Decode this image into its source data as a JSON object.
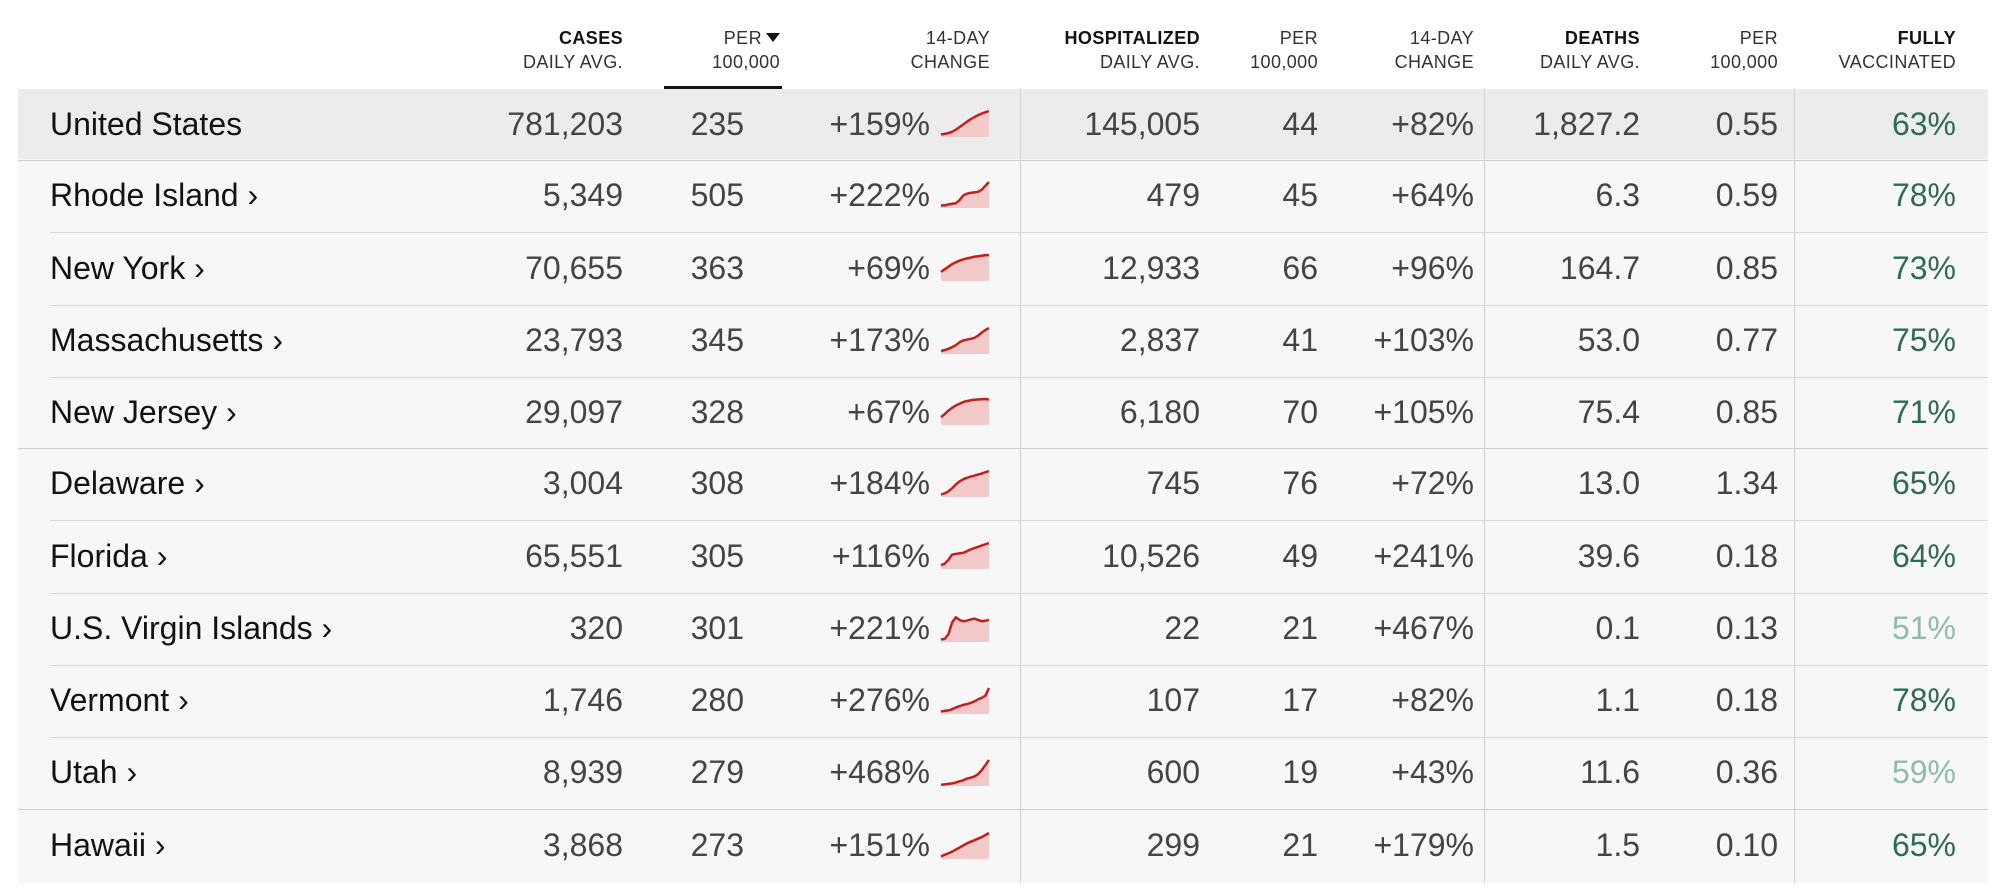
{
  "header": {
    "cases": {
      "line1": "CASES",
      "line2": "DAILY AVG."
    },
    "cases_per": {
      "line1": "PER",
      "line2": "100,000"
    },
    "cases_change": {
      "line1": "14-DAY",
      "line2": "CHANGE"
    },
    "hosp": {
      "line1": "HOSPITALIZED",
      "line2": "DAILY AVG."
    },
    "hosp_per": {
      "line1": "PER",
      "line2": "100,000"
    },
    "hosp_change": {
      "line1": "14-DAY",
      "line2": "CHANGE"
    },
    "deaths": {
      "line1": "DEATHS",
      "line2": "DAILY AVG."
    },
    "deaths_per": {
      "line1": "PER",
      "line2": "100,000"
    },
    "vax": {
      "line1": "FULLY",
      "line2": "VACCINATED"
    }
  },
  "colors": {
    "spark_line": "#c0211e",
    "spark_fill": "#f2c9c8",
    "vax_high": "#2e6a55",
    "vax_low": "#8fbca9"
  },
  "rows": [
    {
      "name": "United States",
      "cases": "781,203",
      "cases_per": "235",
      "cases_change": "+159%",
      "hosp": "145,005",
      "hosp_per": "44",
      "hosp_change": "+82%",
      "deaths": "1,827.2",
      "deaths_per": "0.55",
      "vax": "63%",
      "vax_pct": 63,
      "spark": [
        0.1,
        0.12,
        0.15,
        0.2,
        0.28,
        0.38,
        0.48,
        0.58,
        0.68,
        0.76,
        0.84,
        0.9,
        0.95,
        1.0
      ]
    },
    {
      "name": "Rhode Island ›",
      "cases": "5,349",
      "cases_per": "505",
      "cases_change": "+222%",
      "hosp": "479",
      "hosp_per": "45",
      "hosp_change": "+64%",
      "deaths": "6.3",
      "deaths_per": "0.59",
      "vax": "78%",
      "vax_pct": 78,
      "spark": [
        0.1,
        0.1,
        0.14,
        0.16,
        0.18,
        0.3,
        0.48,
        0.55,
        0.58,
        0.6,
        0.62,
        0.7,
        0.85,
        1.0
      ]
    },
    {
      "name": "New York ›",
      "cases": "70,655",
      "cases_per": "363",
      "cases_change": "+69%",
      "hosp": "12,933",
      "hosp_per": "66",
      "hosp_change": "+96%",
      "deaths": "164.7",
      "deaths_per": "0.85",
      "vax": "73%",
      "vax_pct": 73,
      "spark": [
        0.35,
        0.45,
        0.55,
        0.65,
        0.72,
        0.78,
        0.83,
        0.87,
        0.9,
        0.93,
        0.95,
        0.97,
        0.99,
        1.0
      ]
    },
    {
      "name": "Massachusetts ›",
      "cases": "23,793",
      "cases_per": "345",
      "cases_change": "+173%",
      "hosp": "2,837",
      "hosp_per": "41",
      "hosp_change": "+103%",
      "deaths": "53.0",
      "deaths_per": "0.77",
      "vax": "75%",
      "vax_pct": 75,
      "spark": [
        0.12,
        0.15,
        0.2,
        0.26,
        0.34,
        0.45,
        0.52,
        0.55,
        0.58,
        0.62,
        0.7,
        0.82,
        0.92,
        1.0
      ]
    },
    {
      "name": "New Jersey ›",
      "cases": "29,097",
      "cases_per": "328",
      "cases_change": "+67%",
      "hosp": "6,180",
      "hosp_per": "70",
      "hosp_change": "+105%",
      "deaths": "75.4",
      "deaths_per": "0.85",
      "vax": "71%",
      "vax_pct": 71,
      "spark": [
        0.3,
        0.42,
        0.55,
        0.66,
        0.75,
        0.82,
        0.88,
        0.92,
        0.95,
        0.97,
        0.98,
        0.99,
        1.0,
        0.98
      ]
    },
    {
      "name": "Delaware ›",
      "cases": "3,004",
      "cases_per": "308",
      "cases_change": "+184%",
      "hosp": "745",
      "hosp_per": "76",
      "hosp_change": "+72%",
      "deaths": "13.0",
      "deaths_per": "1.34",
      "vax": "65%",
      "vax_pct": 65,
      "spark": [
        0.1,
        0.14,
        0.22,
        0.34,
        0.48,
        0.6,
        0.68,
        0.74,
        0.78,
        0.82,
        0.86,
        0.9,
        0.95,
        1.0
      ]
    },
    {
      "name": "Florida ›",
      "cases": "65,551",
      "cases_per": "305",
      "cases_change": "+116%",
      "hosp": "10,526",
      "hosp_per": "49",
      "hosp_change": "+241%",
      "deaths": "39.6",
      "deaths_per": "0.18",
      "vax": "64%",
      "vax_pct": 64,
      "spark": [
        0.15,
        0.2,
        0.35,
        0.55,
        0.58,
        0.6,
        0.62,
        0.68,
        0.75,
        0.8,
        0.85,
        0.9,
        0.95,
        1.0
      ]
    },
    {
      "name": "U.S. Virgin Islands ›",
      "cases": "320",
      "cases_per": "301",
      "cases_change": "+221%",
      "hosp": "22",
      "hosp_per": "21",
      "hosp_change": "+467%",
      "deaths": "0.1",
      "deaths_per": "0.13",
      "vax": "51%",
      "vax_pct": 51,
      "spark": [
        0.1,
        0.12,
        0.3,
        0.75,
        0.95,
        0.85,
        0.8,
        0.82,
        0.86,
        0.9,
        0.85,
        0.8,
        0.82,
        0.85
      ]
    },
    {
      "name": "Vermont ›",
      "cases": "1,746",
      "cases_per": "280",
      "cases_change": "+276%",
      "hosp": "107",
      "hosp_per": "17",
      "hosp_change": "+82%",
      "deaths": "1.1",
      "deaths_per": "0.18",
      "vax": "78%",
      "vax_pct": 78,
      "spark": [
        0.1,
        0.12,
        0.14,
        0.18,
        0.25,
        0.3,
        0.35,
        0.38,
        0.42,
        0.48,
        0.56,
        0.62,
        0.7,
        1.0
      ]
    },
    {
      "name": "Utah ›",
      "cases": "8,939",
      "cases_per": "279",
      "cases_change": "+468%",
      "hosp": "600",
      "hosp_per": "19",
      "hosp_change": "+43%",
      "deaths": "11.6",
      "deaths_per": "0.36",
      "vax": "59%",
      "vax_pct": 59,
      "spark": [
        0.05,
        0.06,
        0.08,
        0.1,
        0.14,
        0.18,
        0.22,
        0.28,
        0.32,
        0.36,
        0.45,
        0.6,
        0.8,
        1.0
      ]
    },
    {
      "name": "Hawaii ›",
      "cases": "3,868",
      "cases_per": "273",
      "cases_change": "+151%",
      "hosp": "299",
      "hosp_per": "21",
      "hosp_change": "+179%",
      "deaths": "1.5",
      "deaths_per": "0.10",
      "vax": "65%",
      "vax_pct": 65,
      "spark": [
        0.1,
        0.16,
        0.22,
        0.28,
        0.36,
        0.44,
        0.52,
        0.6,
        0.66,
        0.72,
        0.78,
        0.84,
        0.92,
        1.0
      ]
    }
  ]
}
